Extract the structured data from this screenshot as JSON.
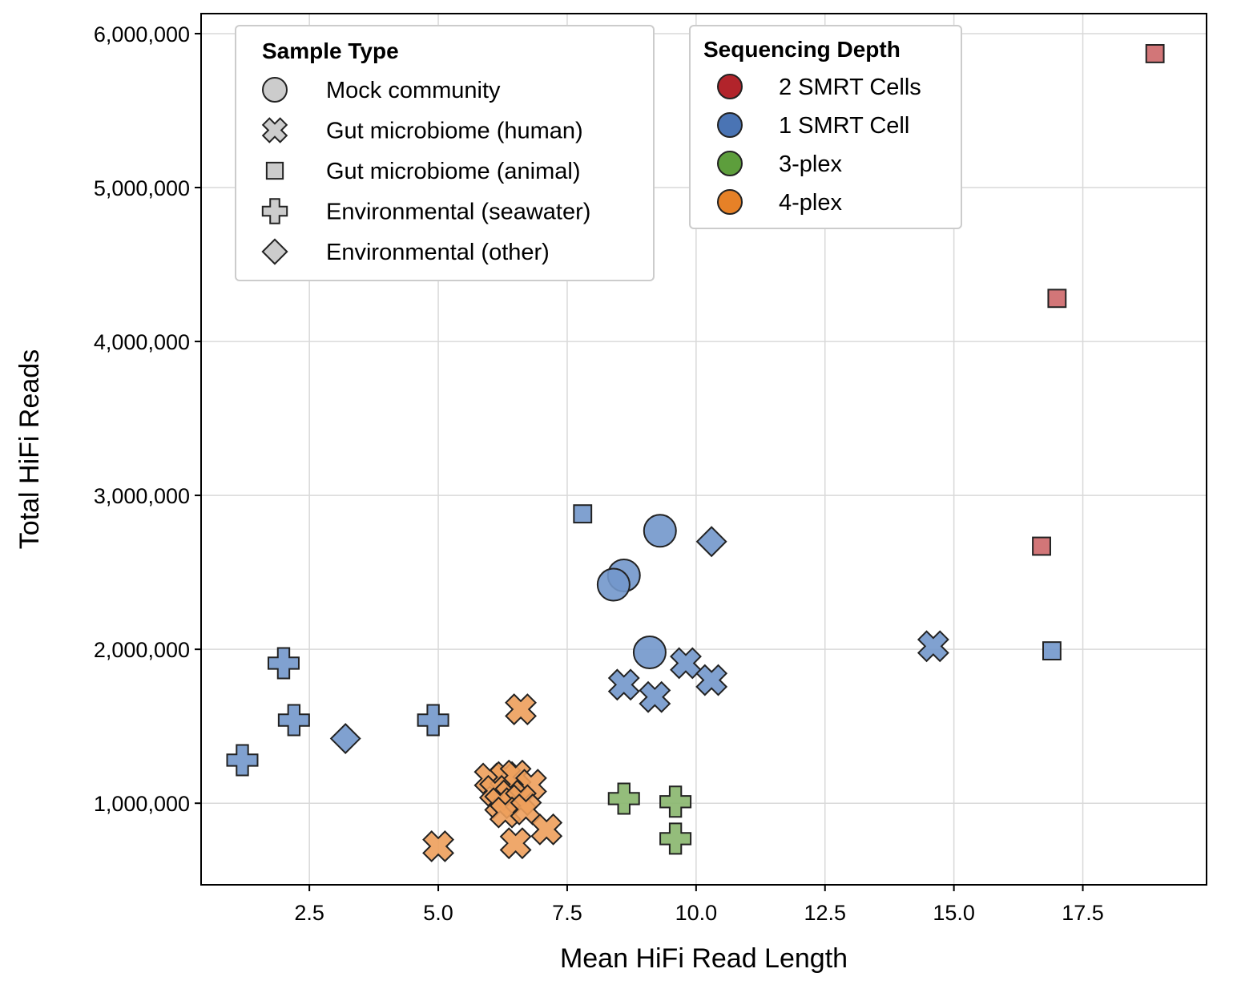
{
  "chart_data": {
    "type": "scatter",
    "xlabel": "Mean HiFi Read Length",
    "ylabel": "Total HiFi Reads",
    "xlim": [
      0.4,
      19.9
    ],
    "ylim": [
      470000,
      6130000
    ],
    "x_ticks": [
      2.5,
      5.0,
      7.5,
      10.0,
      12.5,
      15.0,
      17.5
    ],
    "x_tick_labels": [
      "2.5",
      "5.0",
      "7.5",
      "10.0",
      "12.5",
      "15.0",
      "17.5"
    ],
    "y_ticks": [
      1000000,
      2000000,
      3000000,
      4000000,
      5000000,
      6000000
    ],
    "y_tick_labels": [
      "1,000,000",
      "2,000,000",
      "3,000,000",
      "4,000,000",
      "5,000,000",
      "6,000,000"
    ],
    "grid": true,
    "legend_sample_type": {
      "title": "Sample Type",
      "placement": "top-left",
      "entries": [
        {
          "key": "mock",
          "label": "Mock community",
          "shape": "circle"
        },
        {
          "key": "gut_human",
          "label": "Gut microbiome (human)",
          "shape": "x"
        },
        {
          "key": "gut_animal",
          "label": "Gut microbiome (animal)",
          "shape": "square"
        },
        {
          "key": "env_seawater",
          "label": "Environmental (seawater)",
          "shape": "plus"
        },
        {
          "key": "env_other",
          "label": "Environmental (other)",
          "shape": "diamond"
        }
      ]
    },
    "legend_depth": {
      "title": "Sequencing Depth",
      "placement": "top-center",
      "entries": [
        {
          "key": "2smrt",
          "label": "2 SMRT Cells",
          "color": "#b2242b"
        },
        {
          "key": "1smrt",
          "label": "1 SMRT Cell",
          "color": "#4a74b4"
        },
        {
          "key": "3plex",
          "label": "3-plex",
          "color": "#5d9e3c"
        },
        {
          "key": "4plex",
          "label": "4-plex",
          "color": "#e68127"
        }
      ]
    },
    "point_colors": {
      "2smrt": "#cd6769",
      "1smrt": "#7297cb",
      "3plex": "#88b66d",
      "4plex": "#ed9e5b"
    },
    "points": [
      {
        "x": 18.9,
        "y": 5870000,
        "type": "gut_animal",
        "depth": "2smrt"
      },
      {
        "x": 17.0,
        "y": 4280000,
        "type": "gut_animal",
        "depth": "2smrt"
      },
      {
        "x": 16.7,
        "y": 2670000,
        "type": "gut_animal",
        "depth": "2smrt"
      },
      {
        "x": 7.8,
        "y": 2880000,
        "type": "gut_animal",
        "depth": "1smrt"
      },
      {
        "x": 16.9,
        "y": 1990000,
        "type": "gut_animal",
        "depth": "1smrt"
      },
      {
        "x": 9.3,
        "y": 2770000,
        "type": "mock",
        "depth": "1smrt"
      },
      {
        "x": 8.6,
        "y": 2480000,
        "type": "mock",
        "depth": "1smrt"
      },
      {
        "x": 8.4,
        "y": 2420000,
        "type": "mock",
        "depth": "1smrt"
      },
      {
        "x": 9.1,
        "y": 1980000,
        "type": "mock",
        "depth": "1smrt"
      },
      {
        "x": 10.3,
        "y": 2700000,
        "type": "env_other",
        "depth": "1smrt"
      },
      {
        "x": 3.2,
        "y": 1420000,
        "type": "env_other",
        "depth": "1smrt"
      },
      {
        "x": 14.6,
        "y": 2020000,
        "type": "gut_human",
        "depth": "1smrt"
      },
      {
        "x": 9.8,
        "y": 1910000,
        "type": "gut_human",
        "depth": "1smrt"
      },
      {
        "x": 10.3,
        "y": 1800000,
        "type": "gut_human",
        "depth": "1smrt"
      },
      {
        "x": 8.6,
        "y": 1770000,
        "type": "gut_human",
        "depth": "1smrt"
      },
      {
        "x": 9.2,
        "y": 1690000,
        "type": "gut_human",
        "depth": "1smrt"
      },
      {
        "x": 2.0,
        "y": 1910000,
        "type": "env_seawater",
        "depth": "1smrt"
      },
      {
        "x": 2.2,
        "y": 1540000,
        "type": "env_seawater",
        "depth": "1smrt"
      },
      {
        "x": 4.9,
        "y": 1540000,
        "type": "env_seawater",
        "depth": "1smrt"
      },
      {
        "x": 1.2,
        "y": 1280000,
        "type": "env_seawater",
        "depth": "1smrt"
      },
      {
        "x": 8.6,
        "y": 1030000,
        "type": "env_seawater",
        "depth": "3plex"
      },
      {
        "x": 9.6,
        "y": 1010000,
        "type": "env_seawater",
        "depth": "3plex"
      },
      {
        "x": 9.6,
        "y": 770000,
        "type": "env_seawater",
        "depth": "3plex"
      },
      {
        "x": 6.6,
        "y": 1610000,
        "type": "gut_human",
        "depth": "4plex"
      },
      {
        "x": 6.0,
        "y": 1160000,
        "type": "gut_human",
        "depth": "4plex"
      },
      {
        "x": 6.3,
        "y": 1170000,
        "type": "gut_human",
        "depth": "4plex"
      },
      {
        "x": 6.5,
        "y": 1180000,
        "type": "gut_human",
        "depth": "4plex"
      },
      {
        "x": 6.8,
        "y": 1120000,
        "type": "gut_human",
        "depth": "4plex"
      },
      {
        "x": 6.1,
        "y": 1080000,
        "type": "gut_human",
        "depth": "4plex"
      },
      {
        "x": 6.4,
        "y": 1050000,
        "type": "gut_human",
        "depth": "4plex"
      },
      {
        "x": 6.2,
        "y": 1000000,
        "type": "gut_human",
        "depth": "4plex"
      },
      {
        "x": 6.6,
        "y": 1020000,
        "type": "gut_human",
        "depth": "4plex"
      },
      {
        "x": 6.3,
        "y": 940000,
        "type": "gut_human",
        "depth": "4plex"
      },
      {
        "x": 6.7,
        "y": 960000,
        "type": "gut_human",
        "depth": "4plex"
      },
      {
        "x": 7.1,
        "y": 830000,
        "type": "gut_human",
        "depth": "4plex"
      },
      {
        "x": 6.5,
        "y": 740000,
        "type": "gut_human",
        "depth": "4plex"
      },
      {
        "x": 5.0,
        "y": 720000,
        "type": "gut_human",
        "depth": "4plex"
      }
    ]
  }
}
